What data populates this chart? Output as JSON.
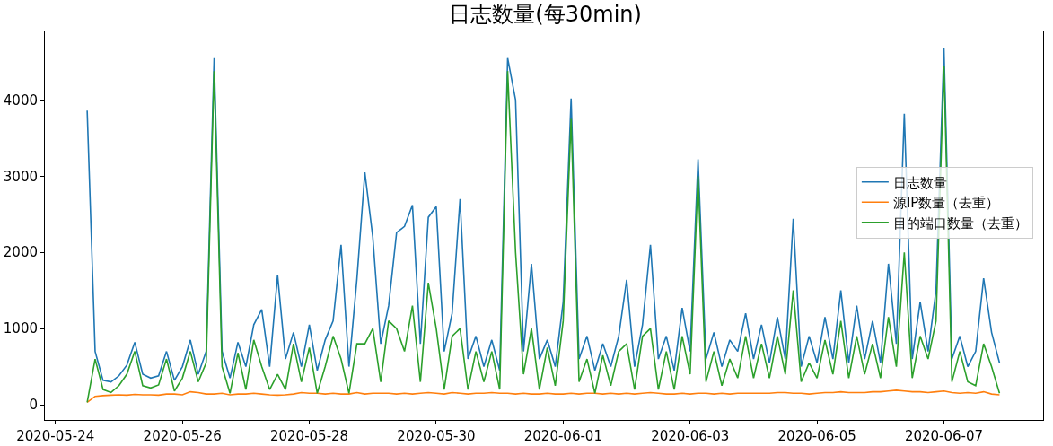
{
  "chart_data": {
    "type": "line",
    "title": "日志数量(每30min)",
    "x": [
      "2020-05-24T12:00",
      "2020-05-24T15:00",
      "2020-05-24T18:00",
      "2020-05-24T21:00",
      "2020-05-25T00:00",
      "2020-05-25T03:00",
      "2020-05-25T06:00",
      "2020-05-25T09:00",
      "2020-05-25T12:00",
      "2020-05-25T15:00",
      "2020-05-25T18:00",
      "2020-05-25T21:00",
      "2020-05-26T00:00",
      "2020-05-26T03:00",
      "2020-05-26T06:00",
      "2020-05-26T09:00",
      "2020-05-26T12:00",
      "2020-05-26T15:00",
      "2020-05-26T18:00",
      "2020-05-26T21:00",
      "2020-05-27T00:00",
      "2020-05-27T03:00",
      "2020-05-27T06:00",
      "2020-05-27T09:00",
      "2020-05-27T12:00",
      "2020-05-27T15:00",
      "2020-05-27T18:00",
      "2020-05-27T21:00",
      "2020-05-28T00:00",
      "2020-05-28T03:00",
      "2020-05-28T06:00",
      "2020-05-28T09:00",
      "2020-05-28T12:00",
      "2020-05-28T15:00",
      "2020-05-28T18:00",
      "2020-05-28T21:00",
      "2020-05-29T00:00",
      "2020-05-29T03:00",
      "2020-05-29T06:00",
      "2020-05-29T09:00",
      "2020-05-29T12:00",
      "2020-05-29T15:00",
      "2020-05-29T18:00",
      "2020-05-29T21:00",
      "2020-05-30T00:00",
      "2020-05-30T03:00",
      "2020-05-30T06:00",
      "2020-05-30T09:00",
      "2020-05-30T12:00",
      "2020-05-30T15:00",
      "2020-05-30T18:00",
      "2020-05-30T21:00",
      "2020-05-31T00:00",
      "2020-05-31T03:00",
      "2020-05-31T06:00",
      "2020-05-31T09:00",
      "2020-05-31T12:00",
      "2020-05-31T15:00",
      "2020-05-31T18:00",
      "2020-05-31T21:00",
      "2020-06-01T00:00",
      "2020-06-01T03:00",
      "2020-06-01T06:00",
      "2020-06-01T09:00",
      "2020-06-01T12:00",
      "2020-06-01T15:00",
      "2020-06-01T18:00",
      "2020-06-01T21:00",
      "2020-06-02T00:00",
      "2020-06-02T03:00",
      "2020-06-02T06:00",
      "2020-06-02T09:00",
      "2020-06-02T12:00",
      "2020-06-02T15:00",
      "2020-06-02T18:00",
      "2020-06-02T21:00",
      "2020-06-03T00:00",
      "2020-06-03T03:00",
      "2020-06-03T06:00",
      "2020-06-03T09:00",
      "2020-06-03T12:00",
      "2020-06-03T15:00",
      "2020-06-03T18:00",
      "2020-06-03T21:00",
      "2020-06-04T00:00",
      "2020-06-04T03:00",
      "2020-06-04T06:00",
      "2020-06-04T09:00",
      "2020-06-04T12:00",
      "2020-06-04T15:00",
      "2020-06-04T18:00",
      "2020-06-04T21:00",
      "2020-06-05T00:00",
      "2020-06-05T03:00",
      "2020-06-05T06:00",
      "2020-06-05T09:00",
      "2020-06-05T12:00",
      "2020-06-05T15:00",
      "2020-06-05T18:00",
      "2020-06-05T21:00",
      "2020-06-06T00:00",
      "2020-06-06T03:00",
      "2020-06-06T06:00",
      "2020-06-06T09:00",
      "2020-06-06T12:00",
      "2020-06-06T15:00",
      "2020-06-06T18:00",
      "2020-06-06T21:00",
      "2020-06-07T00:00",
      "2020-06-07T03:00",
      "2020-06-07T06:00",
      "2020-06-07T09:00",
      "2020-06-07T12:00",
      "2020-06-07T15:00",
      "2020-06-07T18:00",
      "2020-06-07T21:00"
    ],
    "series": [
      {
        "name": "日志数量",
        "color": "#1f77b4",
        "values": [
          3860,
          700,
          320,
          300,
          380,
          520,
          820,
          400,
          350,
          380,
          700,
          320,
          500,
          850,
          400,
          700,
          4550,
          700,
          350,
          820,
          500,
          1050,
          1250,
          500,
          1700,
          600,
          950,
          500,
          1050,
          450,
          850,
          1100,
          2100,
          500,
          1650,
          3050,
          2200,
          800,
          1300,
          2260,
          2340,
          2620,
          800,
          2460,
          2600,
          700,
          1200,
          2700,
          600,
          900,
          500,
          850,
          450,
          4550,
          4000,
          700,
          1850,
          600,
          850,
          500,
          1350,
          4020,
          600,
          900,
          450,
          800,
          500,
          900,
          1640,
          500,
          1050,
          2100,
          600,
          900,
          450,
          1270,
          700,
          3220,
          600,
          950,
          500,
          850,
          700,
          1200,
          600,
          1050,
          550,
          1150,
          600,
          2440,
          500,
          900,
          550,
          1150,
          600,
          1500,
          550,
          1300,
          600,
          1100,
          550,
          1850,
          800,
          3820,
          600,
          1350,
          700,
          1500,
          4680,
          600,
          900,
          500,
          700,
          1660,
          950,
          550
        ]
      },
      {
        "name": "源IP数量（去重）",
        "color": "#ff7f0e",
        "values": [
          30,
          110,
          120,
          125,
          130,
          125,
          135,
          130,
          130,
          125,
          140,
          140,
          130,
          170,
          160,
          140,
          140,
          150,
          130,
          140,
          140,
          150,
          140,
          130,
          125,
          130,
          140,
          160,
          150,
          150,
          140,
          150,
          140,
          140,
          160,
          140,
          150,
          150,
          150,
          140,
          150,
          140,
          150,
          160,
          150,
          140,
          160,
          150,
          140,
          150,
          150,
          160,
          150,
          150,
          140,
          150,
          140,
          140,
          150,
          140,
          140,
          150,
          140,
          150,
          150,
          140,
          150,
          140,
          150,
          140,
          150,
          160,
          150,
          140,
          140,
          150,
          140,
          150,
          150,
          140,
          150,
          140,
          150,
          150,
          150,
          150,
          150,
          160,
          160,
          150,
          150,
          140,
          150,
          160,
          160,
          170,
          160,
          160,
          160,
          170,
          170,
          180,
          190,
          180,
          170,
          170,
          160,
          170,
          180,
          160,
          150,
          160,
          150,
          170,
          140,
          130
        ]
      },
      {
        "name": "目的端口数量（去重）",
        "color": "#2ca02c",
        "values": [
          30,
          600,
          200,
          160,
          250,
          400,
          700,
          250,
          220,
          260,
          600,
          180,
          350,
          700,
          300,
          550,
          4380,
          500,
          150,
          680,
          200,
          850,
          500,
          200,
          400,
          200,
          800,
          300,
          750,
          150,
          500,
          900,
          600,
          150,
          800,
          800,
          1000,
          300,
          1100,
          1000,
          700,
          1300,
          300,
          1600,
          1000,
          200,
          900,
          1000,
          200,
          700,
          300,
          700,
          200,
          4380,
          2000,
          400,
          1000,
          200,
          750,
          250,
          1100,
          3750,
          300,
          600,
          150,
          650,
          250,
          700,
          800,
          200,
          900,
          1000,
          200,
          700,
          200,
          900,
          400,
          3000,
          300,
          700,
          250,
          600,
          350,
          900,
          350,
          800,
          350,
          900,
          400,
          1500,
          300,
          550,
          350,
          850,
          400,
          1100,
          350,
          900,
          400,
          800,
          350,
          1150,
          500,
          2000,
          350,
          900,
          600,
          1100,
          4450,
          300,
          700,
          300,
          250,
          800,
          500,
          150
        ]
      }
    ],
    "xlim": [
      "2020-05-23T20:00",
      "2020-06-08T13:30"
    ],
    "xticks": [
      "2020-05-24",
      "2020-05-26",
      "2020-05-28",
      "2020-05-30",
      "2020-06-01",
      "2020-06-03",
      "2020-06-05",
      "2020-06-07"
    ],
    "ylim": [
      -200,
      4900
    ],
    "yticks": [
      0,
      1000,
      2000,
      3000,
      4000
    ],
    "legend": "right",
    "grid": false,
    "marker": "none",
    "line_style": "solid"
  }
}
